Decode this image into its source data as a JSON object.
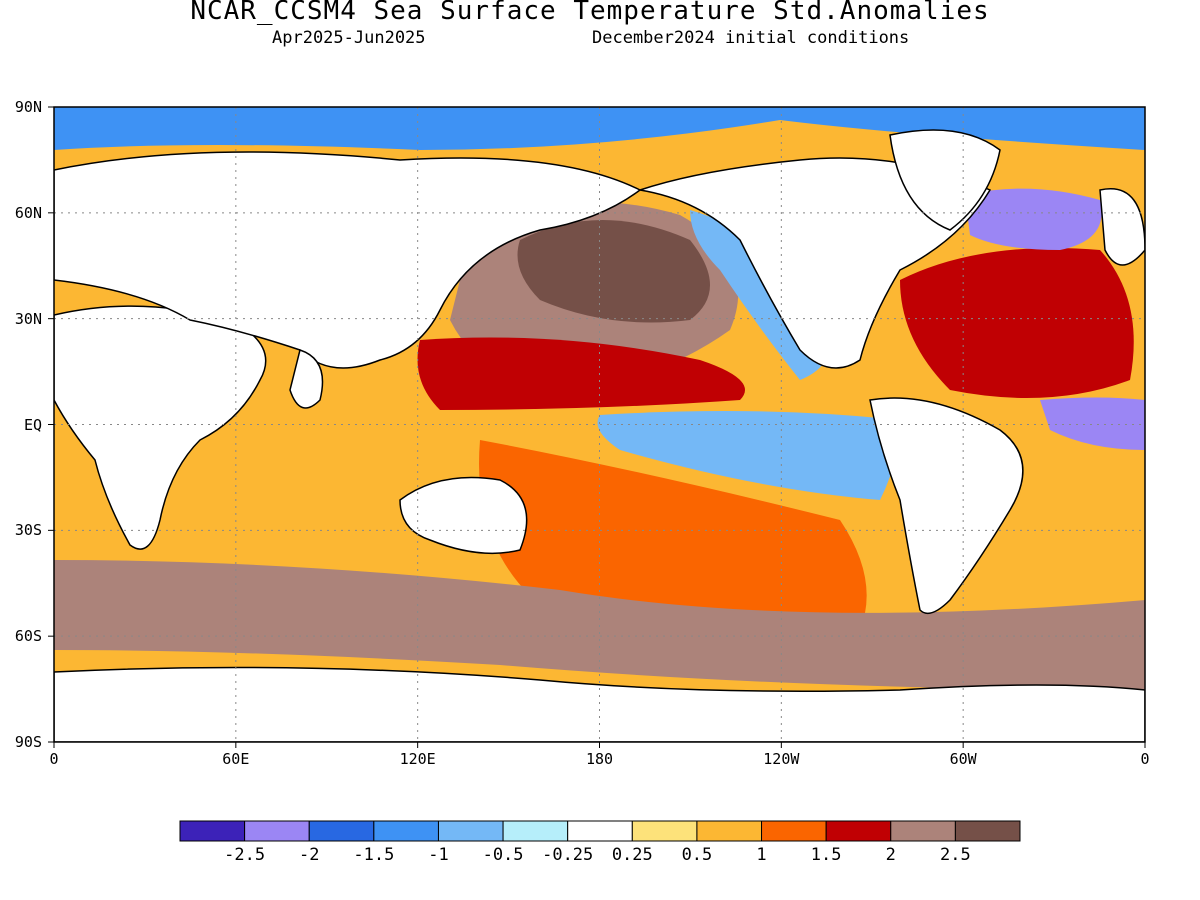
{
  "header": {
    "title": "NCAR_CCSM4 Sea Surface Temperature Std.Anomalies",
    "period": "Apr2025-Jun2025",
    "init": "December2024 initial conditions"
  },
  "axes": {
    "lat_labels": [
      "90N",
      "60N",
      "30N",
      "EQ",
      "30S",
      "60S",
      "90S"
    ],
    "lon_labels": [
      "0",
      "60E",
      "120E",
      "180",
      "120W",
      "60W",
      "0"
    ]
  },
  "colorbar": {
    "colors": [
      "#3c22b8",
      "#9b86f4",
      "#2868e2",
      "#3e92f4",
      "#74b8f6",
      "#b6eefa",
      "#ffffff",
      "#fde27a",
      "#fcb733",
      "#fa6500",
      "#c00003",
      "#ac837a",
      "#755048"
    ],
    "labels": [
      "-2.5",
      "-2",
      "-1.5",
      "-1",
      "-0.5",
      "-0.25",
      "0.25",
      "0.5",
      "1",
      "1.5",
      "2",
      "2.5"
    ]
  },
  "map_features": {
    "background_anomaly_color": "#fcb733",
    "land_color": "#ffffff",
    "coastline_color": "#000000",
    "regions": [
      {
        "name": "north-pacific-warm-blob",
        "color": "#ac837a"
      },
      {
        "name": "north-pacific-core",
        "color": "#755048"
      },
      {
        "name": "kuroshio-warm-band",
        "color": "#c00003"
      },
      {
        "name": "equatorial-pacific-cool-tongue",
        "color": "#74b8f6"
      },
      {
        "name": "california-current-cool",
        "color": "#74b8f6"
      },
      {
        "name": "north-atlantic-warm",
        "color": "#c00003"
      },
      {
        "name": "subpolar-atlantic-cold",
        "color": "#9b86f4"
      },
      {
        "name": "equatorial-atlantic-cold",
        "color": "#9b86f4"
      },
      {
        "name": "south-pacific-warm",
        "color": "#fa6500"
      },
      {
        "name": "southern-ocean-warm",
        "color": "#ac837a"
      },
      {
        "name": "arctic-cool",
        "color": "#3e92f4"
      }
    ]
  }
}
